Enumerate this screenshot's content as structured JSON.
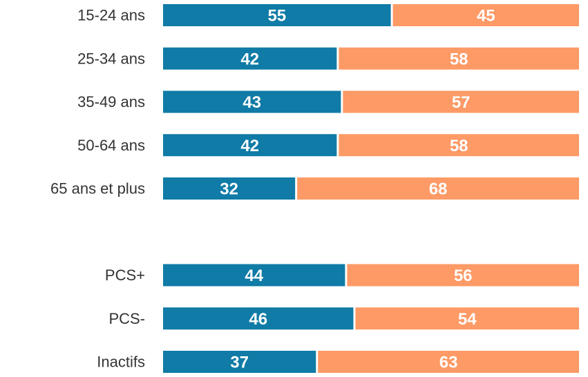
{
  "chart_data": {
    "type": "stacked-barh",
    "categories": [
      "15-24 ans",
      "25-34 ans",
      "35-49 ans",
      "50-64 ans",
      "65 ans et plus",
      null,
      "PCS+",
      "PCS-",
      "Inactifs"
    ],
    "series": [
      {
        "color": "#0f7ba6",
        "values": [
          55,
          42,
          43,
          42,
          32,
          null,
          44,
          46,
          37
        ]
      },
      {
        "color": "#fd9a66",
        "values": [
          45,
          58,
          57,
          58,
          68,
          null,
          56,
          54,
          63
        ]
      }
    ],
    "xlim": [
      0,
      100
    ]
  }
}
